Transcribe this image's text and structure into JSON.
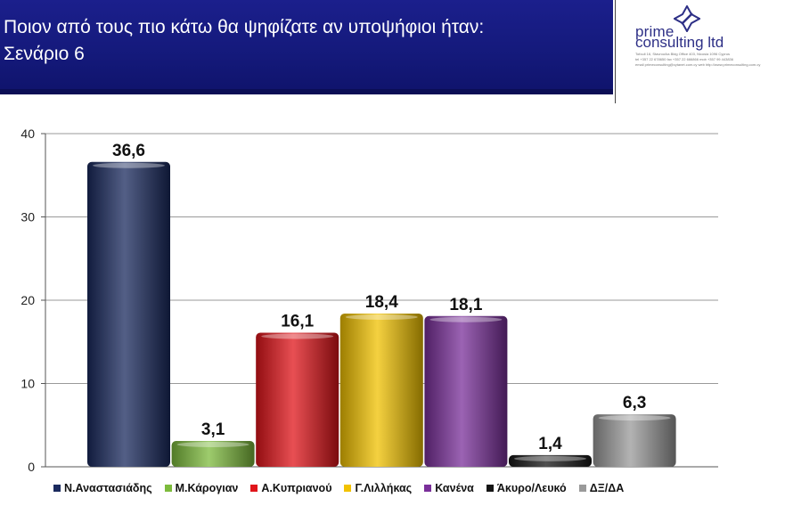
{
  "header": {
    "title": "Ποιον από τους πιο κάτω θα ψηφίζατε αν υποψήφιοι ήταν:\nΣενάριο 6"
  },
  "logo": {
    "name_line1": "prime",
    "name_line2": "consulting ltd",
    "fine_line1": "Tofouli 16, Stavrou/ka Bldg Office 403, Nicosia 1096 Cyprus",
    "fine_line2": "tel +357 22 678650  fax +357 22 666866  mob +357 99 443836",
    "fine_line3": "email primeconsulting@cytanet.com.cy  web http://www.primeconsulting.com.cy"
  },
  "chart_data": {
    "type": "bar",
    "categories": [
      "Ν.Αναστασιάδης",
      "Μ.Κάρογιαν",
      "Α.Κυπριανού",
      "Γ.Λιλλήκας",
      "Κανένα",
      "Άκυρο/Λευκό",
      "ΔΞ/ΔΑ"
    ],
    "values": [
      36.6,
      3.1,
      16.1,
      18.4,
      18.1,
      1.4,
      6.3
    ],
    "value_labels": [
      "36,6",
      "3,1",
      "16,1",
      "18,4",
      "18,1",
      "1,4",
      "6,3"
    ],
    "colors": [
      "#1a2a5e",
      "#7dbb3c",
      "#e0141a",
      "#f2c200",
      "#7a2f9a",
      "#151515",
      "#9a9a9a"
    ],
    "ylim": [
      0,
      40
    ],
    "yticks": [
      0,
      10,
      20,
      30,
      40
    ],
    "grid": true,
    "legend_position": "bottom"
  }
}
